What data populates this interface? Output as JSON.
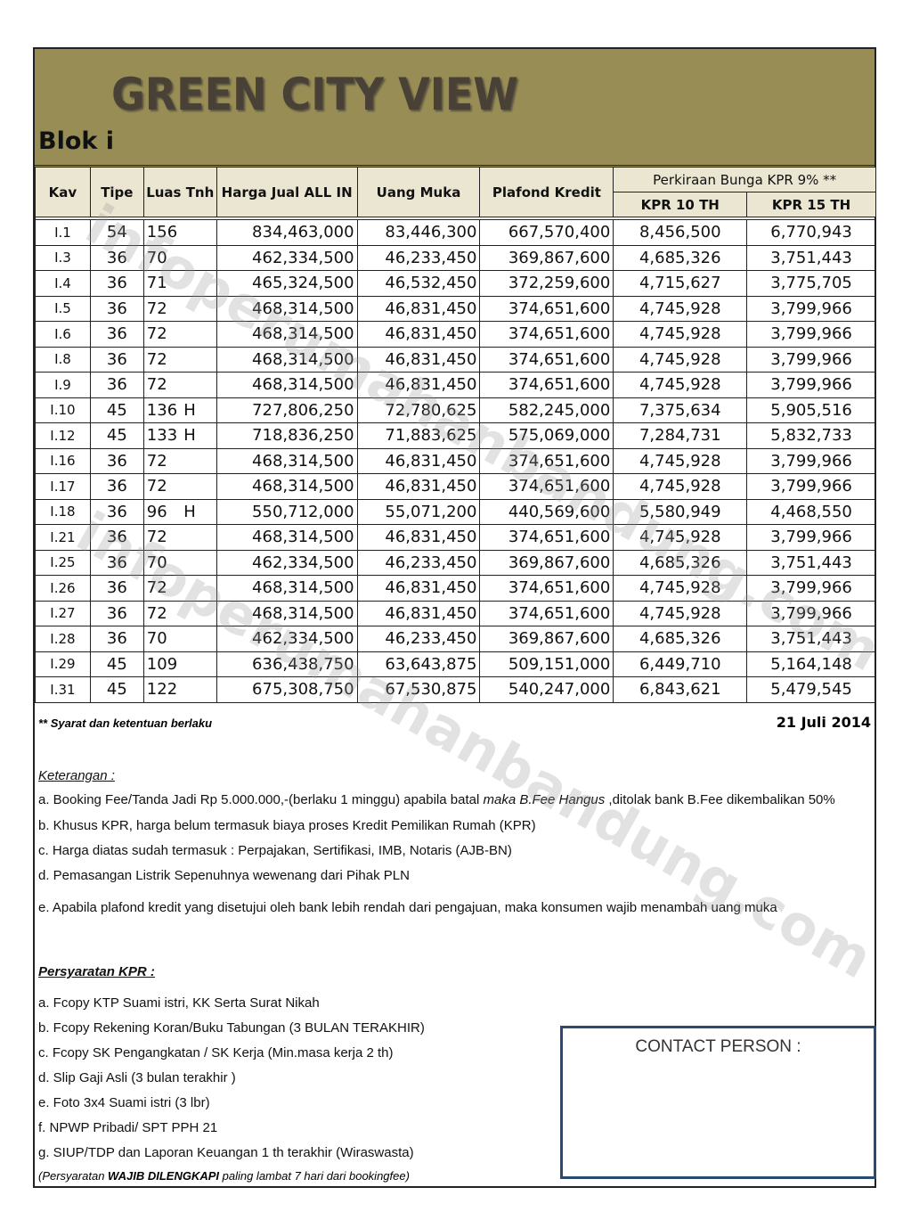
{
  "header": {
    "title": "GREEN CITY VIEW",
    "subtitle": "Blok i"
  },
  "table": {
    "columns": [
      "Kav",
      "Tipe",
      "Luas Tnh",
      "Harga Jual ALL IN",
      "Uang Muka",
      "Plafond Kredit"
    ],
    "group_header": "Perkiraan Bunga KPR 9% **",
    "sub_columns": [
      "KPR 10 TH",
      "KPR 15 TH"
    ],
    "rows": [
      [
        "I.1",
        "54",
        "156",
        "",
        "834,463,000",
        "83,446,300",
        "667,570,400",
        "8,456,500",
        "6,770,943"
      ],
      [
        "I.3",
        "36",
        "70",
        "",
        "462,334,500",
        "46,233,450",
        "369,867,600",
        "4,685,326",
        "3,751,443"
      ],
      [
        "I.4",
        "36",
        "71",
        "",
        "465,324,500",
        "46,532,450",
        "372,259,600",
        "4,715,627",
        "3,775,705"
      ],
      [
        "I.5",
        "36",
        "72",
        "",
        "468,314,500",
        "46,831,450",
        "374,651,600",
        "4,745,928",
        "3,799,966"
      ],
      [
        "I.6",
        "36",
        "72",
        "",
        "468,314,500",
        "46,831,450",
        "374,651,600",
        "4,745,928",
        "3,799,966"
      ],
      [
        "I.8",
        "36",
        "72",
        "",
        "468,314,500",
        "46,831,450",
        "374,651,600",
        "4,745,928",
        "3,799,966"
      ],
      [
        "I.9",
        "36",
        "72",
        "",
        "468,314,500",
        "46,831,450",
        "374,651,600",
        "4,745,928",
        "3,799,966"
      ],
      [
        "I.10",
        "45",
        "136",
        "H",
        "727,806,250",
        "72,780,625",
        "582,245,000",
        "7,375,634",
        "5,905,516"
      ],
      [
        "I.12",
        "45",
        "133",
        "H",
        "718,836,250",
        "71,883,625",
        "575,069,000",
        "7,284,731",
        "5,832,733"
      ],
      [
        "I.16",
        "36",
        "72",
        "",
        "468,314,500",
        "46,831,450",
        "374,651,600",
        "4,745,928",
        "3,799,966"
      ],
      [
        "I.17",
        "36",
        "72",
        "",
        "468,314,500",
        "46,831,450",
        "374,651,600",
        "4,745,928",
        "3,799,966"
      ],
      [
        "I.18",
        "36",
        "96",
        "H",
        "550,712,000",
        "55,071,200",
        "440,569,600",
        "5,580,949",
        "4,468,550"
      ],
      [
        "I.21",
        "36",
        "72",
        "",
        "468,314,500",
        "46,831,450",
        "374,651,600",
        "4,745,928",
        "3,799,966"
      ],
      [
        "I.25",
        "36",
        "70",
        "",
        "462,334,500",
        "46,233,450",
        "369,867,600",
        "4,685,326",
        "3,751,443"
      ],
      [
        "I.26",
        "36",
        "72",
        "",
        "468,314,500",
        "46,831,450",
        "374,651,600",
        "4,745,928",
        "3,799,966"
      ],
      [
        "I.27",
        "36",
        "72",
        "",
        "468,314,500",
        "46,831,450",
        "374,651,600",
        "4,745,928",
        "3,799,966"
      ],
      [
        "I.28",
        "36",
        "70",
        "",
        "462,334,500",
        "46,233,450",
        "369,867,600",
        "4,685,326",
        "3,751,443"
      ],
      [
        "I.29",
        "45",
        "109",
        "",
        "636,438,750",
        "63,643,875",
        "509,151,000",
        "6,449,710",
        "5,164,148"
      ],
      [
        "I.31",
        "45",
        "122",
        "",
        "675,308,750",
        "67,530,875",
        "540,247,000",
        "6,843,621",
        "5,479,545"
      ]
    ]
  },
  "footer": {
    "terms": "** Syarat dan ketentuan berlaku",
    "date": "21 Juli 2014"
  },
  "keterangan": {
    "title": "Keterangan :",
    "items": [
      "a. Booking Fee/Tanda Jadi Rp 5.000.000,-(berlaku 1 minggu) apabila batal ",
      "maka B.Fee Hangus",
      " ,ditolak bank B.Fee dikembalikan 50%",
      "b. Khusus KPR, harga belum termasuk biaya proses Kredit Pemilikan Rumah (KPR)",
      "c. Harga diatas sudah termasuk : Perpajakan, Sertifikasi, IMB, Notaris (AJB-BN)",
      "d. Pemasangan Listrik Sepenuhnya wewenang dari Pihak PLN",
      "e. Apabila plafond kredit yang disetujui oleh bank lebih rendah dari pengajuan, maka konsumen wajib menambah uang muka"
    ]
  },
  "persyaratan": {
    "title": "Persyaratan KPR :",
    "items": [
      "a. Fcopy KTP Suami istri, KK Serta Surat Nikah",
      "b. Fcopy Rekening Koran/Buku Tabungan (3 BULAN TERAKHIR)",
      "c. Fcopy SK Pengangkatan / SK Kerja (Min.masa kerja 2 th)",
      "d. Slip Gaji Asli (3 bulan terakhir )",
      "e. Foto 3x4 Suami istri (3 lbr)",
      "f.  NPWP Pribadi/ SPT PPH 21",
      "g. SIUP/TDP dan Laporan Keuangan 1 th terakhir  (Wiraswasta)"
    ],
    "final_pre": "(Persyaratan  ",
    "final_bold": "WAJIB DILENGKAPI",
    "final_post": "  paling lambat 7 hari dari bookingfee)"
  },
  "contact": {
    "label": "CONTACT PERSON :"
  },
  "watermark": "infoperumahanbandung.com",
  "colors": {
    "banner": "#978d55",
    "header_cell": "#ebe6d2",
    "contact_border": "#2c4a6e"
  }
}
